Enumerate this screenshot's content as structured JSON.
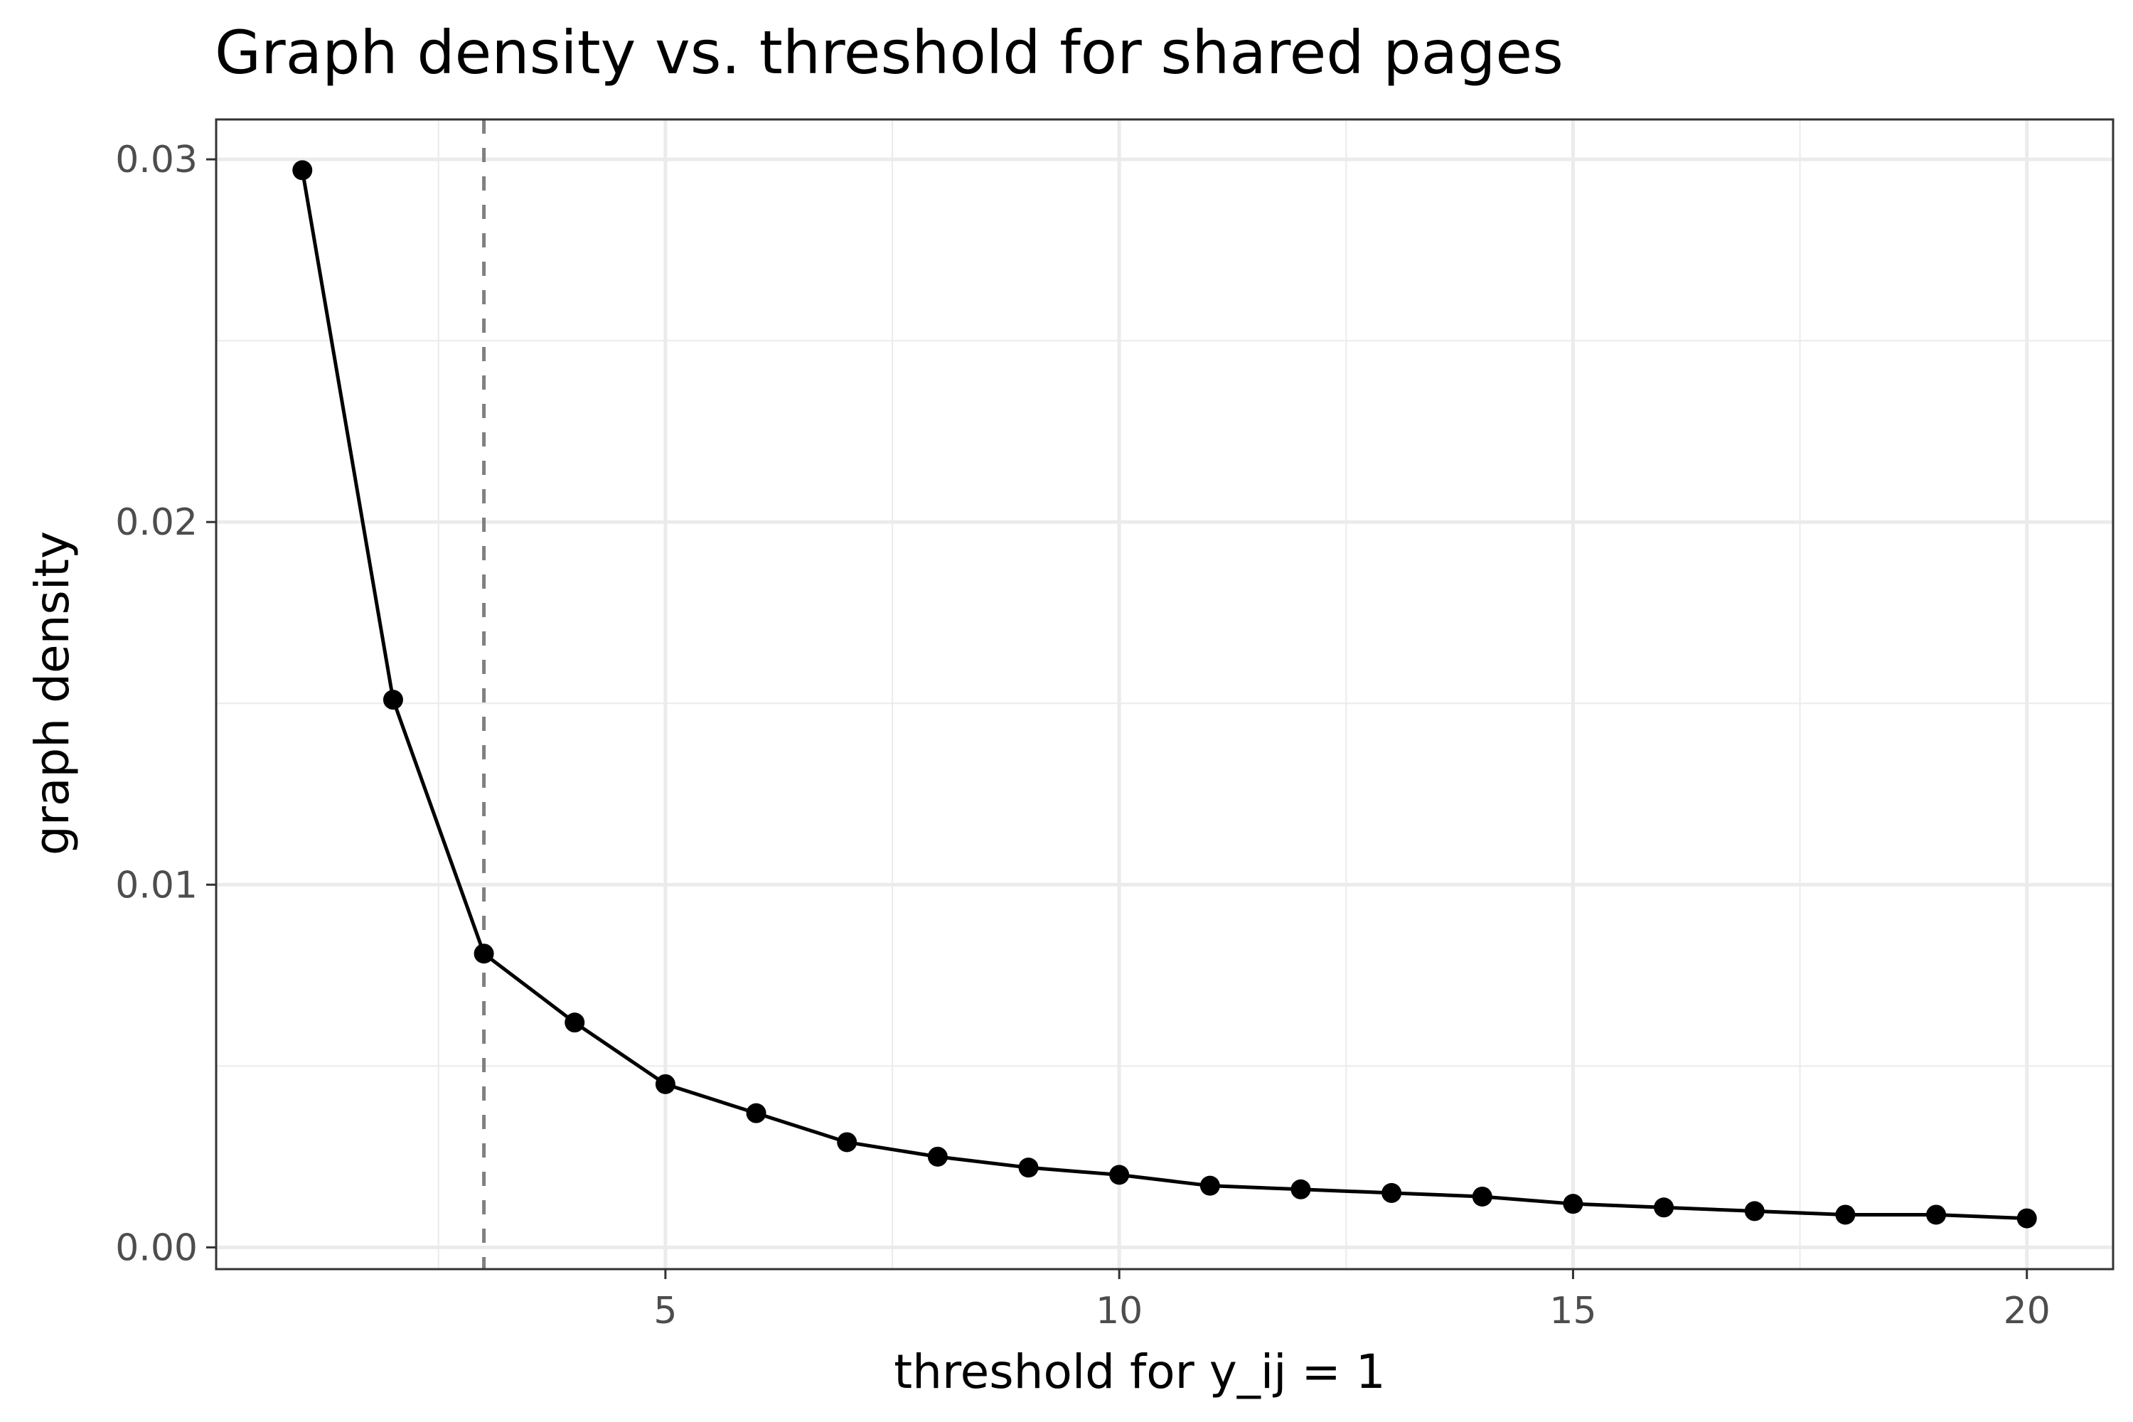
{
  "chart_data": {
    "type": "line",
    "title": "Graph density vs. threshold for shared pages",
    "xlabel": "threshold for y_ij = 1",
    "ylabel": "graph density",
    "xlim": [
      0.05,
      20.95
    ],
    "ylim": [
      -0.0006,
      0.0311
    ],
    "x_ticks": [
      5,
      10,
      15,
      20
    ],
    "x_tick_labels": [
      "5",
      "10",
      "15",
      "20"
    ],
    "y_ticks": [
      0,
      0.01,
      0.02,
      0.03
    ],
    "y_tick_labels": [
      "0.00",
      "0.01",
      "0.02",
      "0.03"
    ],
    "grid": true,
    "reference_line": {
      "orientation": "vertical",
      "x": 3,
      "style": "dashed",
      "color": "#808080"
    },
    "series": [
      {
        "x": [
          1,
          2,
          3,
          4,
          5,
          6,
          7,
          8,
          9,
          10,
          11,
          12,
          13,
          14,
          15,
          16,
          17,
          18,
          19,
          20
        ],
        "y": [
          0.0297,
          0.0151,
          0.0081,
          0.0062,
          0.0045,
          0.0037,
          0.0029,
          0.0025,
          0.0022,
          0.002,
          0.0017,
          0.0016,
          0.0015,
          0.0014,
          0.0012,
          0.0011,
          0.001,
          0.0009,
          0.0009,
          0.0008
        ],
        "color": "#000000"
      }
    ]
  }
}
